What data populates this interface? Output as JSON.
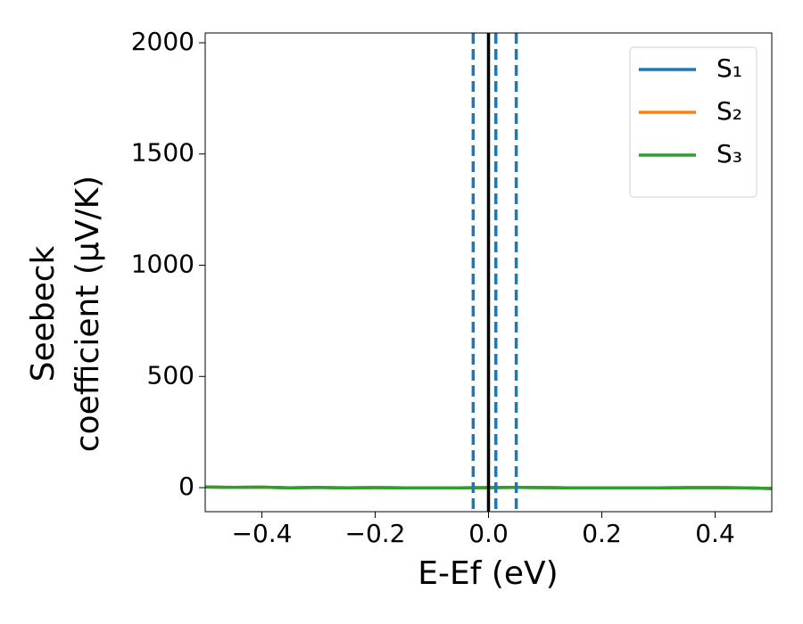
{
  "chart_data": {
    "type": "line",
    "xlabel": "E-Ef (eV)",
    "ylabel": [
      "Seebeck",
      "coefficient  (μV/K)"
    ],
    "x": [
      -0.5,
      -0.45,
      -0.4,
      -0.35,
      -0.3,
      -0.25,
      -0.2,
      -0.15,
      -0.1,
      -0.05,
      0.0,
      0.05,
      0.1,
      0.15,
      0.2,
      0.25,
      0.3,
      0.35,
      0.4,
      0.45,
      0.5
    ],
    "series": [
      {
        "name": "S₁",
        "color": "#1f77b4",
        "values": [
          3,
          1,
          2,
          -1,
          1,
          -1,
          0,
          -1,
          -1,
          -1,
          0,
          1,
          0,
          -1,
          -1,
          -1,
          -1,
          0,
          0,
          -1,
          -4
        ]
      },
      {
        "name": "S₂",
        "color": "#ff7f0e",
        "values": [
          3,
          1,
          2,
          -1,
          1,
          -1,
          0,
          -1,
          -1,
          -1,
          0,
          1,
          0,
          -1,
          -1,
          -1,
          -1,
          0,
          0,
          -1,
          -4
        ]
      },
      {
        "name": "S₃",
        "color": "#2ca02c",
        "values": [
          3,
          1,
          2,
          -1,
          1,
          -1,
          0,
          -1,
          -1,
          -1,
          0,
          1,
          0,
          -1,
          -1,
          -1,
          -1,
          0,
          0,
          -1,
          -4
        ]
      }
    ],
    "vlines": [
      {
        "x": -0.027,
        "color": "#1f77b4",
        "style": "dashed"
      },
      {
        "x": 0.0,
        "color": "#000000",
        "style": "solid"
      },
      {
        "x": 0.013,
        "color": "#1f77b4",
        "style": "dashed"
      },
      {
        "x": 0.049,
        "color": "#1f77b4",
        "style": "dashed"
      }
    ],
    "xlim": [
      -0.5,
      0.5
    ],
    "ylim": [
      -108,
      2044
    ],
    "xticks": [
      {
        "value": -0.4,
        "label": "−0.4"
      },
      {
        "value": -0.2,
        "label": "−0.2"
      },
      {
        "value": 0.0,
        "label": "0.0"
      },
      0.2,
      0.4
    ],
    "yticks": [
      0,
      500,
      1000,
      1500,
      2000
    ],
    "legend": "upper right"
  }
}
